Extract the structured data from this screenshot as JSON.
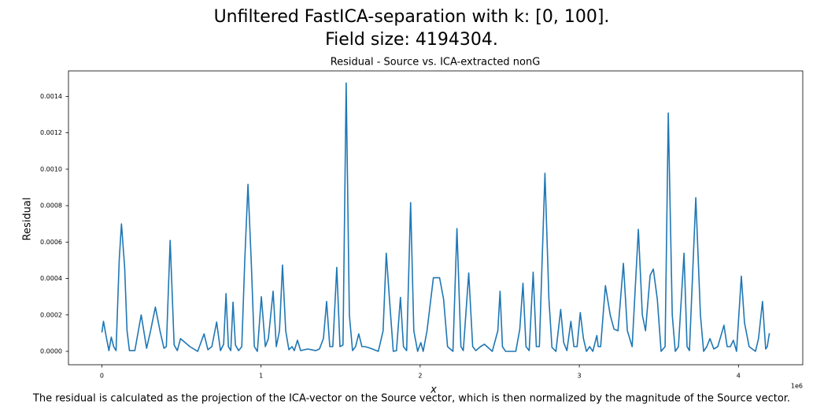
{
  "chart_data": {
    "type": "line",
    "title": "Unfiltered FastICA-separation with k: [0, 100].",
    "subtitle": "Field size: 4194304.",
    "axes_title": "Residual - Source vs. ICA-extracted nonG",
    "x_label": "x",
    "y_label": "Residual",
    "x_offset_label": "1e6",
    "caption": "The residual is calculated as the projection of the ICA-vector on the Source vector, which is then normalized by the magnitude of the Source vector.",
    "xlim": [
      -0.21,
      4.404
    ],
    "xticks": [
      0,
      1,
      2,
      3,
      4
    ],
    "ylim": [
      -7.35e-05,
      0.00154
    ],
    "yticks": [
      {
        "value": 0,
        "label": "0.0000"
      },
      {
        "value": 0.0002,
        "label": "0.0002"
      },
      {
        "value": 0.0004,
        "label": "0.0004"
      },
      {
        "value": 0.0006,
        "label": "0.0006"
      },
      {
        "value": 0.0008,
        "label": "0.0008"
      },
      {
        "value": 0.001,
        "label": "0.0010"
      },
      {
        "value": 0.0012,
        "label": "0.0012"
      },
      {
        "value": 0.0014,
        "label": "0.0014"
      }
    ],
    "color": "#1f77b4",
    "x": [
      0,
      0.01,
      0.025,
      0.044,
      0.059,
      0.074,
      0.089,
      0.109,
      0.123,
      0.143,
      0.158,
      0.173,
      0.207,
      0.247,
      0.281,
      0.306,
      0.336,
      0.365,
      0.39,
      0.405,
      0.429,
      0.454,
      0.474,
      0.494,
      0.553,
      0.602,
      0.642,
      0.666,
      0.691,
      0.721,
      0.745,
      0.765,
      0.78,
      0.795,
      0.81,
      0.824,
      0.839,
      0.859,
      0.879,
      0.898,
      0.918,
      0.938,
      0.958,
      0.977,
      1.002,
      1.027,
      1.046,
      1.076,
      1.096,
      1.116,
      1.135,
      1.155,
      1.175,
      1.195,
      1.209,
      1.229,
      1.249,
      1.293,
      1.343,
      1.367,
      1.392,
      1.412,
      1.432,
      1.451,
      1.476,
      1.496,
      1.515,
      1.535,
      1.555,
      1.575,
      1.594,
      1.614,
      1.634,
      1.654,
      1.688,
      1.737,
      1.767,
      1.787,
      1.807,
      1.831,
      1.851,
      1.876,
      1.895,
      1.915,
      1.94,
      1.96,
      1.984,
      2.004,
      2.019,
      2.043,
      2.083,
      2.122,
      2.147,
      2.172,
      2.206,
      2.231,
      2.256,
      2.271,
      2.305,
      2.33,
      2.35,
      2.379,
      2.404,
      2.453,
      2.488,
      2.502,
      2.517,
      2.537,
      2.601,
      2.626,
      2.646,
      2.665,
      2.685,
      2.71,
      2.73,
      2.749,
      2.784,
      2.809,
      2.828,
      2.853,
      2.883,
      2.902,
      2.922,
      2.947,
      2.966,
      2.986,
      3.006,
      3.026,
      3.045,
      3.065,
      3.085,
      3.11,
      3.119,
      3.134,
      3.164,
      3.194,
      3.218,
      3.243,
      3.277,
      3.302,
      3.332,
      3.371,
      3.396,
      3.416,
      3.445,
      3.465,
      3.49,
      3.514,
      3.539,
      3.559,
      3.584,
      3.603,
      3.623,
      3.658,
      3.677,
      3.692,
      3.732,
      3.761,
      3.781,
      3.801,
      3.821,
      3.845,
      3.87,
      3.909,
      3.929,
      3.949,
      3.968,
      3.988,
      4.018,
      4.038,
      4.067,
      4.107,
      4.126,
      4.151,
      4.171,
      4.181,
      4.194304
    ],
    "values": [
      0.000104,
      0.000165,
      9.1e-05,
      4e-06,
      7.8e-05,
      2.6e-05,
      4e-06,
      0.000504,
      0.0007,
      0.000461,
      0.000113,
      4e-06,
      4e-06,
      0.0002,
      1.7e-05,
      0.000113,
      0.000243,
      0.000113,
      1.7e-05,
      2.6e-05,
      0.000609,
      3.5e-05,
      4e-06,
      7e-05,
      2.6e-05,
      0,
      9.6e-05,
      9e-06,
      2.6e-05,
      0.000161,
      4e-06,
      3.9e-05,
      0.000317,
      2.6e-05,
      4e-06,
      0.00027,
      3.5e-05,
      4e-06,
      2.6e-05,
      0.000504,
      0.000917,
      0.000504,
      2.6e-05,
      0,
      0.0003,
      2.6e-05,
      7e-05,
      0.00033,
      2.6e-05,
      0.000113,
      0.000474,
      0.000113,
      9e-06,
      2.6e-05,
      4e-06,
      6.1e-05,
      4e-06,
      1.3e-05,
      4e-06,
      1.3e-05,
      7e-05,
      0.000274,
      2.6e-05,
      2.6e-05,
      0.000461,
      2.6e-05,
      3.5e-05,
      0.001474,
      0.0002,
      4e-06,
      2.6e-05,
      9.6e-05,
      2.6e-05,
      2.6e-05,
      1.7e-05,
      0,
      0.000113,
      0.000539,
      0.000287,
      0,
      4e-06,
      0.000296,
      2.6e-05,
      4e-06,
      0.000817,
      0.000113,
      0,
      4.8e-05,
      0,
      0.000113,
      0.000404,
      0.000404,
      0.000287,
      2.6e-05,
      0,
      0.000674,
      2.6e-05,
      4e-06,
      0.00043,
      2.6e-05,
      4e-06,
      2.6e-05,
      3.9e-05,
      0,
      0.000113,
      0.00033,
      2.6e-05,
      0,
      0,
      0.000122,
      0.000374,
      2.6e-05,
      4e-06,
      0.000435,
      2.6e-05,
      2.6e-05,
      0.000978,
      0.000287,
      2.2e-05,
      0,
      0.00023,
      4.8e-05,
      4e-06,
      0.000165,
      2.6e-05,
      2.6e-05,
      0.000213,
      7e-05,
      0,
      2.6e-05,
      0,
      8.7e-05,
      2.6e-05,
      2.6e-05,
      0.000361,
      0.0002,
      0.000122,
      0.000113,
      0.000483,
      0.000113,
      2.6e-05,
      0.00067,
      0.0002,
      0.000113,
      0.000417,
      0.000452,
      0.000287,
      0,
      2.6e-05,
      0.001309,
      0.0002,
      0,
      2.6e-05,
      0.000539,
      2.6e-05,
      4e-06,
      0.000844,
      0.0002,
      0,
      2.6e-05,
      7e-05,
      1.3e-05,
      2.6e-05,
      0.000143,
      2.6e-05,
      2.6e-05,
      6.1e-05,
      0,
      0.000413,
      0.000157,
      2.6e-05,
      0,
      7e-05,
      0.000274,
      1.3e-05,
      2.6e-05,
      0.0001
    ]
  }
}
